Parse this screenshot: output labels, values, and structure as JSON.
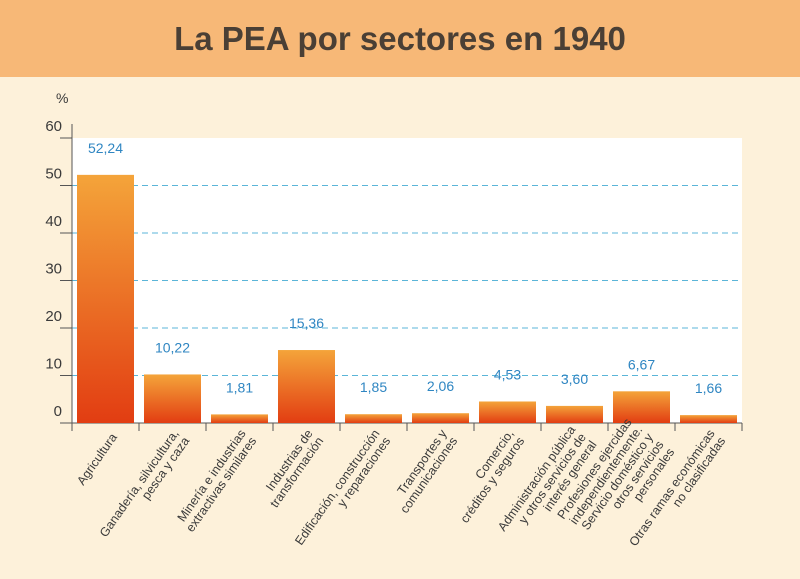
{
  "header": {
    "title": "La PEA por sectores en 1940"
  },
  "chart_data": {
    "type": "bar",
    "title": "La PEA por sectores en 1940",
    "ylabel": "%",
    "ylim": [
      0,
      60
    ],
    "yticks": [
      "0",
      "10",
      "20",
      "30",
      "40",
      "50",
      "60"
    ],
    "grid": true,
    "categories": [
      [
        "Agricultura"
      ],
      [
        "Ganadería, silvicultura,",
        "pesca y caza"
      ],
      [
        "Minería e industrias",
        "extractivas similares"
      ],
      [
        "Industrias de",
        "transformación"
      ],
      [
        "Edificación, construcción",
        "y reparaciones"
      ],
      [
        "Transportes y",
        "comunicaciones"
      ],
      [
        "Comercio,",
        "créditos y seguros"
      ],
      [
        "Administración pública",
        "y otros servicios de",
        "interés general"
      ],
      [
        "Profesiones ejercidas",
        "independientemente.",
        "Servicio doméstico y",
        "otros servicios",
        "personales"
      ],
      [
        "Otras ramas económicas",
        "no clasificadas"
      ]
    ],
    "values": [
      52.24,
      10.22,
      1.81,
      15.36,
      1.85,
      2.06,
      4.53,
      3.6,
      6.67,
      1.66
    ],
    "value_labels": [
      "52,24",
      "10,22",
      "1,81",
      "15,36",
      "1,85",
      "2,06",
      "4,53",
      "3,60",
      "6,67",
      "1,66"
    ],
    "colors": {
      "bar_top": "#f4a43a",
      "bar_bottom": "#e23d12",
      "value_label": "#2f86c2",
      "grid": "#5bb5d8",
      "plot_bg": "#ffffff"
    }
  }
}
